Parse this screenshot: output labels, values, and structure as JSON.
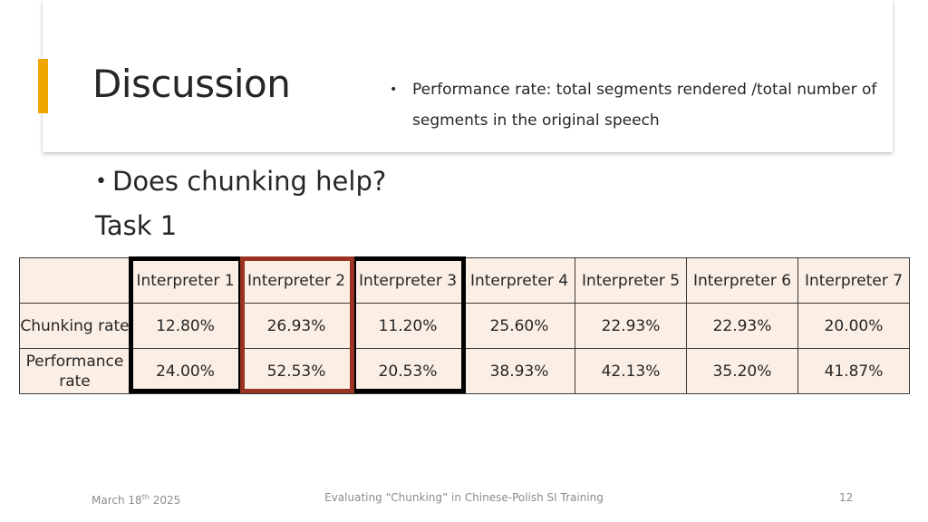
{
  "slide": {
    "title": "Discussion",
    "note": {
      "bullet": "•",
      "text": "Performance rate: total segments rendered /total number of segments in the original speech"
    },
    "bullet": {
      "marker": "•",
      "text": "Does chunking help?"
    },
    "subheading": "Task 1"
  },
  "table": {
    "headers": [
      "",
      "Interpreter 1",
      "Interpreter 2",
      "Interpreter 3",
      "Interpreter 4",
      "Interpreter 5",
      "Interpreter 6",
      "Interpreter 7"
    ],
    "rows": [
      {
        "label": "Chunking rate",
        "values": [
          "12.80%",
          "26.93%",
          "11.20%",
          "25.60%",
          "22.93%",
          "22.93%",
          "20.00%"
        ]
      },
      {
        "label": "Performance rate",
        "values": [
          "24.00%",
          "52.53%",
          "20.53%",
          "38.93%",
          "42.13%",
          "35.20%",
          "41.87%"
        ]
      }
    ],
    "highlights": [
      {
        "column": "Interpreter 1",
        "color": "#000000"
      },
      {
        "column": "Interpreter 2",
        "color": "#9a3321"
      },
      {
        "column": "Interpreter 3",
        "color": "#000000"
      }
    ]
  },
  "footer": {
    "date_prefix": "March 18",
    "date_sup": "th",
    "date_suffix": " 2025",
    "title": "Evaluating “Chunking” in Chinese-Polish SI Training",
    "page_number": "12"
  },
  "colors": {
    "accent": "#f0a500",
    "cell_background": "#fbeee4",
    "highlight_red": "#9a3321"
  }
}
